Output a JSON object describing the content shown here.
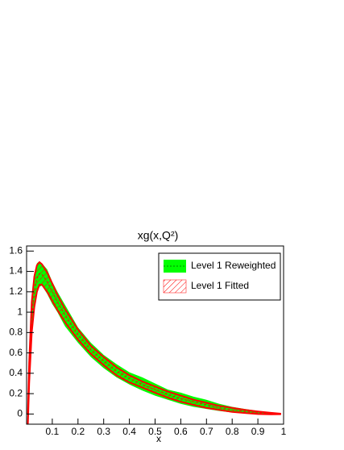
{
  "chart_data": {
    "type": "band",
    "title": "xg(x,Q²)",
    "x_label": "x",
    "x": [
      0.005,
      0.01,
      0.02,
      0.03,
      0.04,
      0.05,
      0.06,
      0.08,
      0.1,
      0.12,
      0.15,
      0.2,
      0.25,
      0.3,
      0.35,
      0.4,
      0.45,
      0.5,
      0.55,
      0.6,
      0.65,
      0.7,
      0.75,
      0.8,
      0.85,
      0.9,
      0.95,
      0.99
    ],
    "series": [
      {
        "name": "Level 1 Reweighted",
        "color": "#00ff00",
        "upper": [
          0,
          0.55,
          1.15,
          1.38,
          1.48,
          1.5,
          1.48,
          1.42,
          1.3,
          1.2,
          1.07,
          0.85,
          0.7,
          0.58,
          0.49,
          0.41,
          0.36,
          0.3,
          0.24,
          0.21,
          0.17,
          0.14,
          0.1,
          0.07,
          0.05,
          0.03,
          0.015,
          0.005
        ],
        "lower": [
          -0.1,
          0.25,
          0.75,
          1.02,
          1.18,
          1.25,
          1.26,
          1.18,
          1.08,
          1.0,
          0.86,
          0.7,
          0.56,
          0.45,
          0.36,
          0.29,
          0.23,
          0.18,
          0.14,
          0.1,
          0.07,
          0.05,
          0.03,
          0.015,
          0.005,
          -0.005,
          -0.005,
          -0.002
        ]
      },
      {
        "name": "Level 1 Fitted",
        "color": "#ff0000",
        "values": [
          -0.05,
          0.4,
          0.95,
          1.2,
          1.33,
          1.38,
          1.37,
          1.3,
          1.2,
          1.1,
          0.97,
          0.78,
          0.63,
          0.52,
          0.42,
          0.35,
          0.29,
          0.24,
          0.19,
          0.15,
          0.12,
          0.09,
          0.06,
          0.04,
          0.025,
          0.012,
          0.005,
          0
        ],
        "upper": [
          0,
          0.5,
          1.1,
          1.35,
          1.46,
          1.49,
          1.47,
          1.39,
          1.28,
          1.17,
          1.03,
          0.83,
          0.67,
          0.56,
          0.46,
          0.38,
          0.32,
          0.27,
          0.22,
          0.18,
          0.14,
          0.11,
          0.08,
          0.06,
          0.04,
          0.025,
          0.012,
          0.003
        ],
        "lower": [
          -0.1,
          0.3,
          0.8,
          1.05,
          1.2,
          1.27,
          1.27,
          1.2,
          1.11,
          1.02,
          0.9,
          0.73,
          0.59,
          0.48,
          0.38,
          0.31,
          0.26,
          0.21,
          0.16,
          0.12,
          0.09,
          0.06,
          0.04,
          0.02,
          0.01,
          0.0,
          -0.003,
          -0.002
        ]
      }
    ],
    "xlim": [
      0,
      1
    ],
    "xticks": [
      0.1,
      0.2,
      0.3,
      0.4,
      0.5,
      0.6,
      0.7,
      0.8,
      0.9,
      1
    ],
    "ylim": [
      -0.1,
      1.65
    ],
    "yticks": [
      0,
      0.2,
      0.4,
      0.6,
      0.8,
      1,
      1.2,
      1.4,
      1.6
    ]
  }
}
